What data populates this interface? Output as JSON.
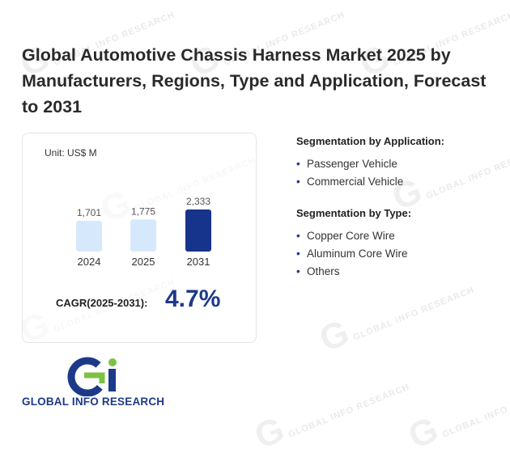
{
  "title": "Global Automotive Chassis Harness Market 2025 by Manufacturers, Regions, Type and Application, Forecast to 2031",
  "unit_label": "Unit: US$ M",
  "cagr": {
    "label": "CAGR(2025-2031):",
    "value": "4.7%"
  },
  "segmentation": [
    {
      "heading": "Segmentation by Application:",
      "items": [
        "Passenger Vehicle",
        "Commercial Vehicle"
      ]
    },
    {
      "heading": "Segmentation by Type:",
      "items": [
        "Copper Core Wire",
        "Aluminum Core Wire",
        "Others"
      ]
    }
  ],
  "logo": {
    "text": "GLOBAL INFO RESEARCH"
  },
  "chart_data": {
    "type": "bar",
    "categories": [
      "2024",
      "2025",
      "2031"
    ],
    "values": [
      1701,
      1775,
      2333
    ],
    "value_labels": [
      "1,701",
      "1,775",
      "2,333"
    ],
    "colors": [
      "#d6e8fb",
      "#d6e8fb",
      "#16348c"
    ],
    "ylabel": "",
    "grid": false
  }
}
